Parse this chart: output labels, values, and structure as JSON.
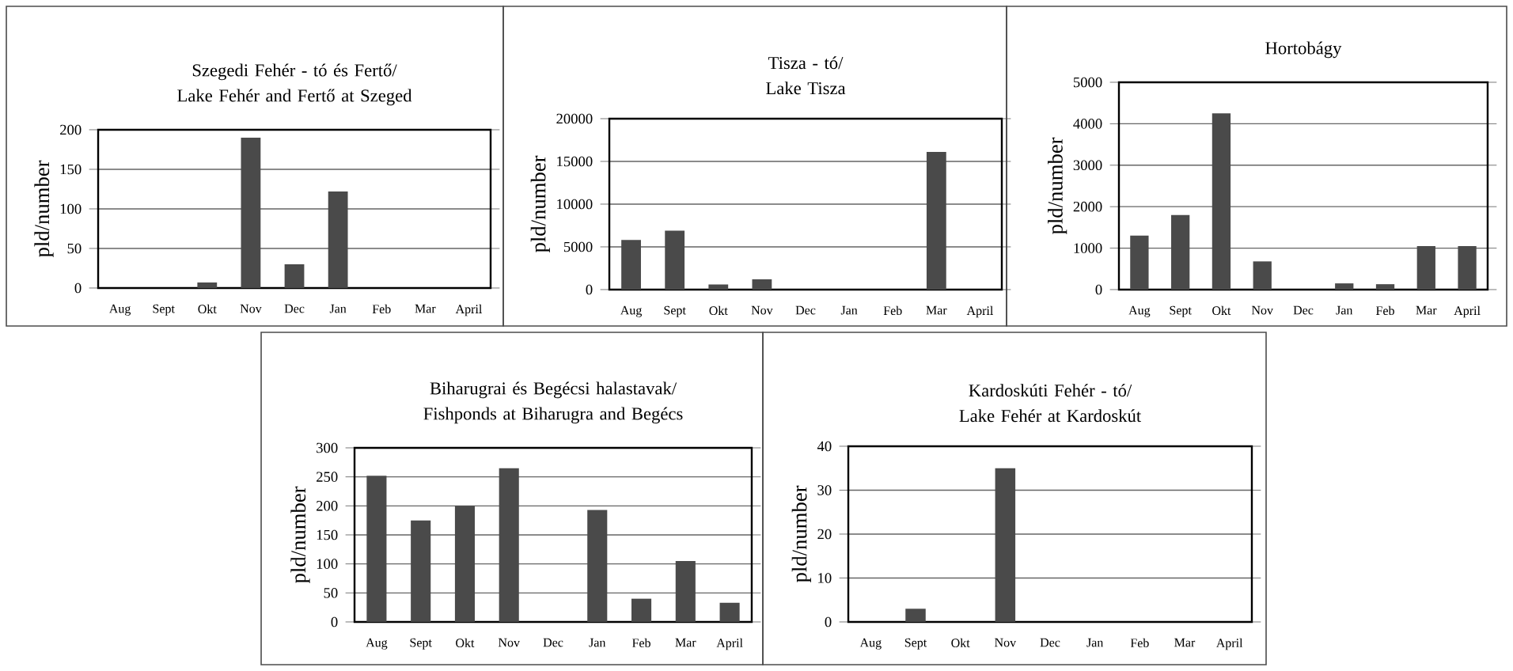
{
  "chart_data": [
    {
      "type": "bar",
      "title": "Szegedi Fehér - tó és Fertő/ Lake Fehér and Fertő at Szeged",
      "ylabel": "pld/number",
      "categories": [
        "Aug",
        "Sept",
        "Okt",
        "Nov",
        "Dec",
        "Jan",
        "Feb",
        "Mar",
        "April"
      ],
      "values": [
        0,
        0,
        7,
        190,
        30,
        122,
        0,
        0,
        0
      ],
      "color": "#4a4a4a",
      "ylim": [
        0,
        200
      ],
      "yticks": [
        0,
        50,
        100,
        150,
        200
      ],
      "grid": "y"
    },
    {
      "type": "bar",
      "title": "Tisza - tó/ Lake Tisza",
      "ylabel": "pld/number",
      "categories": [
        "Aug",
        "Sept",
        "Okt",
        "Nov",
        "Dec",
        "Jan",
        "Feb",
        "Mar",
        "April"
      ],
      "values": [
        5800,
        6900,
        600,
        1200,
        null,
        null,
        0,
        16100,
        null
      ],
      "color": "#4a4a4a",
      "ylim": [
        0,
        20000
      ],
      "yticks": [
        0,
        5000,
        10000,
        15000,
        20000
      ],
      "grid": "y"
    },
    {
      "type": "bar",
      "title": "Hortobágy",
      "ylabel": "pld/number",
      "categories": [
        "Aug",
        "Sept",
        "Okt",
        "Nov",
        "Dec",
        "Jan",
        "Feb",
        "Mar",
        "April"
      ],
      "values": [
        1300,
        1800,
        4250,
        680,
        null,
        150,
        130,
        1050,
        1050
      ],
      "color": "#4a4a4a",
      "ylim": [
        0,
        5000
      ],
      "yticks": [
        0,
        1000,
        2000,
        3000,
        4000,
        5000
      ],
      "grid": "y"
    },
    {
      "type": "bar",
      "title": "Biharugrai és Begécsi halastavak/ Fishponds at Biharugra and Begécs",
      "ylabel": "pld/number",
      "categories": [
        "Aug",
        "Sept",
        "Okt",
        "Nov",
        "Dec",
        "Jan",
        "Feb",
        "Mar",
        "April"
      ],
      "values": [
        252,
        175,
        200,
        265,
        null,
        193,
        40,
        105,
        33
      ],
      "color": "#4a4a4a",
      "ylim": [
        0,
        300
      ],
      "yticks": [
        0,
        50,
        100,
        150,
        200,
        250,
        300
      ],
      "grid": "y"
    },
    {
      "type": "bar",
      "title": "Kardoskúti Fehér - tó/ Lake Fehér at Kardoskút",
      "ylabel": "pld/number",
      "categories": [
        "Aug",
        "Sept",
        "Okt",
        "Nov",
        "Dec",
        "Jan",
        "Feb",
        "Mar",
        "April"
      ],
      "values": [
        0,
        3,
        0,
        35,
        0,
        0,
        0,
        0,
        0
      ],
      "color": "#4a4a4a",
      "ylim": [
        0,
        40
      ],
      "yticks": [
        0,
        10,
        20,
        30,
        40
      ],
      "grid": "y"
    }
  ]
}
